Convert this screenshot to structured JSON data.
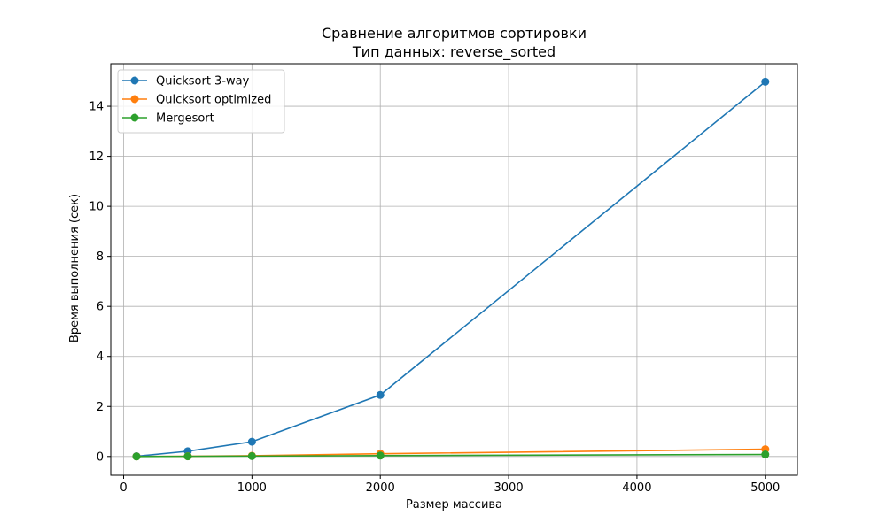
{
  "chart_data": {
    "type": "line",
    "title": "Сравнение алгоритмов сортировки",
    "subtitle": "Тип данных: reverse_sorted",
    "xlabel": "Размер массива",
    "ylabel": "Время выполнения (сек)",
    "xlim": [
      -100,
      5250
    ],
    "ylim": [
      -0.75,
      15.7
    ],
    "xticks": [
      0,
      1000,
      2000,
      3000,
      4000,
      5000
    ],
    "yticks": [
      0,
      2,
      4,
      6,
      8,
      10,
      12,
      14
    ],
    "grid": true,
    "legend_position": "top-left",
    "x": [
      100,
      500,
      1000,
      2000,
      5000
    ],
    "series": [
      {
        "name": "Quicksort 3-way",
        "color": "#1f77b4",
        "values": [
          0.01,
          0.21,
          0.59,
          2.46,
          14.98
        ]
      },
      {
        "name": "Quicksort optimized",
        "color": "#ff7f0e",
        "values": [
          0.002,
          0.01,
          0.03,
          0.11,
          0.29
        ]
      },
      {
        "name": "Mergesort",
        "color": "#2ca02c",
        "values": [
          0.001,
          0.006,
          0.015,
          0.035,
          0.08
        ]
      }
    ]
  }
}
